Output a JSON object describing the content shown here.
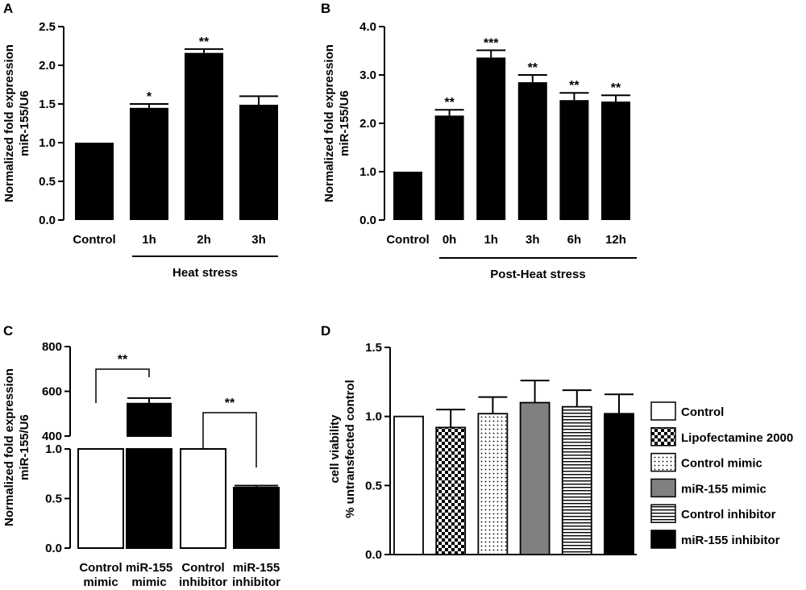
{
  "colors": {
    "black": "#000000",
    "white": "#ffffff",
    "gray": "#808080"
  },
  "chart_data": [
    {
      "panel": "A",
      "type": "bar",
      "ylabel_line1": "Normalized fold expression",
      "ylabel_line2": "miR-155/U6",
      "ylim": [
        0,
        2.5
      ],
      "yticks": [
        "0.0",
        "0.5",
        "1.0",
        "1.5",
        "2.0",
        "2.5"
      ],
      "categories": [
        "Control",
        "1h",
        "2h",
        "3h"
      ],
      "values": [
        1.0,
        1.45,
        2.16,
        1.49
      ],
      "errors": [
        0,
        0.05,
        0.05,
        0.11
      ],
      "significance": [
        "",
        "*",
        "**",
        ""
      ],
      "group_label": "Heat stress"
    },
    {
      "panel": "B",
      "type": "bar",
      "ylabel_line1": "Normalized fold expression",
      "ylabel_line2": "miR-155/U6",
      "ylim": [
        0,
        4.0
      ],
      "yticks": [
        "0.0",
        "1.0",
        "2.0",
        "3.0",
        "4.0"
      ],
      "categories": [
        "Control",
        "0h",
        "1h",
        "3h",
        "6h",
        "12h"
      ],
      "values": [
        1.0,
        2.16,
        3.36,
        2.85,
        2.48,
        2.45
      ],
      "errors": [
        0,
        0.12,
        0.15,
        0.15,
        0.15,
        0.13
      ],
      "significance": [
        "",
        "**",
        "***",
        "**",
        "**",
        "**"
      ],
      "group_label": "Post-Heat stress"
    },
    {
      "panel": "C",
      "type": "bar",
      "ylabel_line1": "Normalized fold expression",
      "ylabel_line2": "miR-155/U6",
      "yticks_lower": [
        "0.0",
        "0.5",
        "1.0"
      ],
      "yticks_upper": [
        "400",
        "600",
        "800"
      ],
      "ylim_lower": [
        0,
        1.0
      ],
      "ylim_upper": [
        400,
        800
      ],
      "categories": [
        [
          "Control",
          "mimic"
        ],
        [
          "miR-155",
          "mimic"
        ],
        [
          "Control",
          "inhibitor"
        ],
        [
          "miR-155",
          "inhibitor"
        ]
      ],
      "values": [
        1.0,
        545,
        1.0,
        0.61
      ],
      "errors": [
        0,
        25,
        0,
        0.02
      ],
      "fills": [
        "#ffffff",
        "#000000",
        "#ffffff",
        "#000000"
      ],
      "brackets": [
        {
          "from": 0,
          "to": 1,
          "label": "**"
        },
        {
          "from": 2,
          "to": 3,
          "label": "**"
        }
      ]
    },
    {
      "panel": "D",
      "type": "bar",
      "ylabel_line1": "cell viability",
      "ylabel_line2": "% untransfected control",
      "ylim": [
        0,
        1.5
      ],
      "yticks": [
        "0.0",
        "0.5",
        "1.0",
        "1.5"
      ],
      "values": [
        1.0,
        0.92,
        1.02,
        1.1,
        1.07,
        1.02
      ],
      "errors": [
        0,
        0.13,
        0.12,
        0.16,
        0.12,
        0.14
      ],
      "patterns": [
        "white",
        "checker",
        "dots",
        "gray",
        "hstripe",
        "black"
      ],
      "legend": [
        "Control",
        "Lipofectamine 2000",
        "Control mimic",
        "miR-155 mimic",
        "Control inhibitor",
        "miR-155 inhibitor"
      ]
    }
  ]
}
